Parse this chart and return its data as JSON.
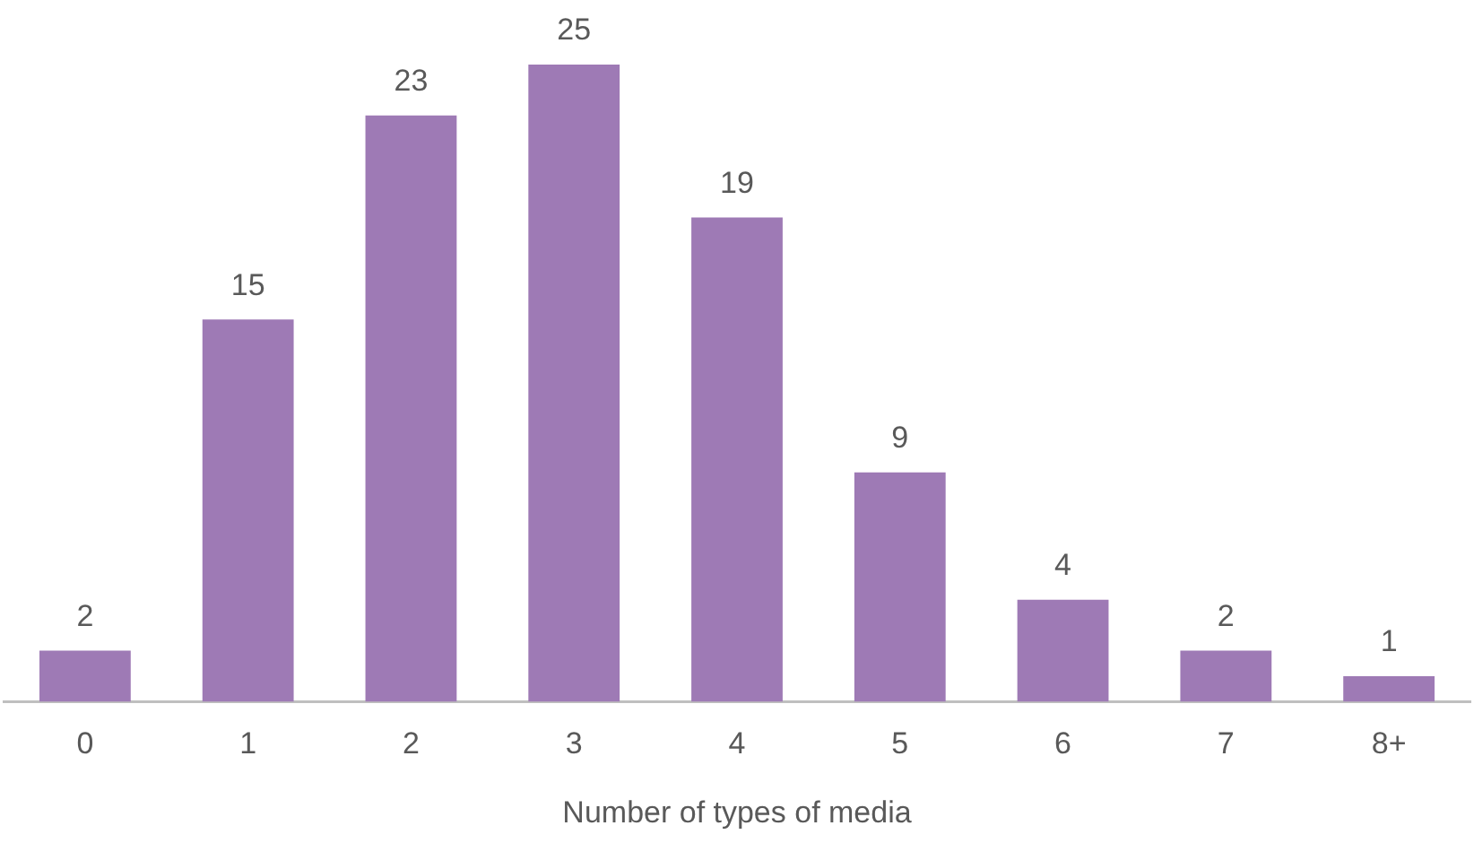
{
  "chart_data": {
    "type": "bar",
    "xlabel": "Number of types of media",
    "categories": [
      "0",
      "1",
      "2",
      "3",
      "4",
      "5",
      "6",
      "7",
      "8+"
    ],
    "values": [
      2,
      15,
      23,
      25,
      19,
      9,
      4,
      2,
      1
    ],
    "color": "#9e7ab5",
    "data_labels": true,
    "grid": false,
    "legend": false
  }
}
